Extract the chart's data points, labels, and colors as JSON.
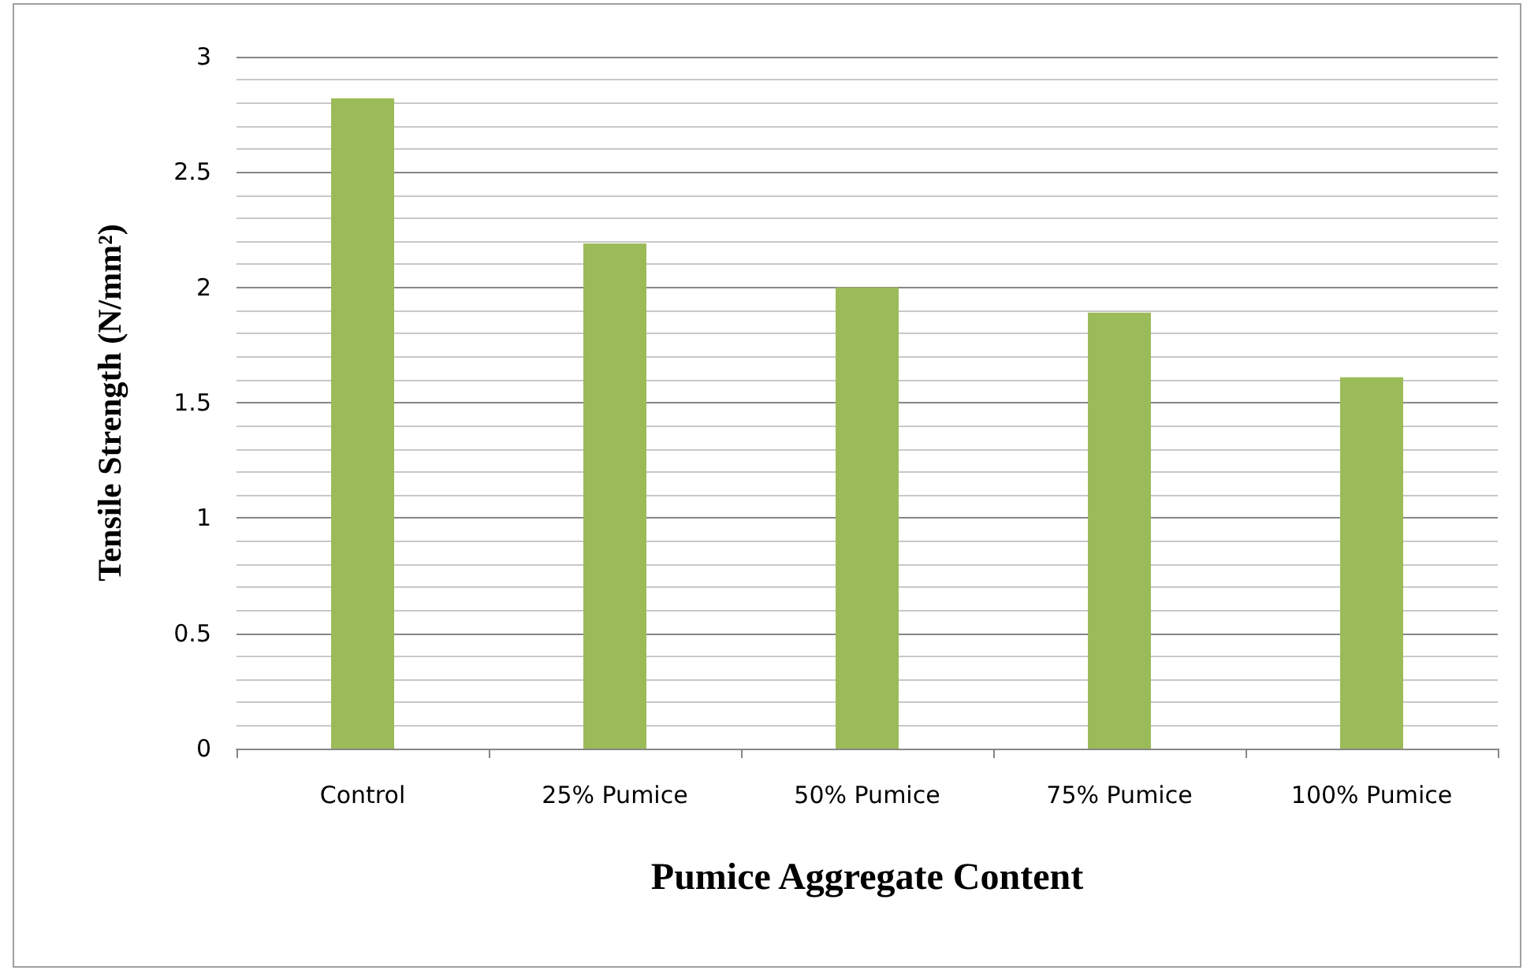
{
  "chart_data": {
    "type": "bar",
    "xlabel": "Pumice Aggregate Content",
    "ylabel": "Tensile Strength (N/mm²)",
    "categories": [
      "Control",
      "25% Pumice",
      "50% Pumice",
      "75% Pumice",
      "100% Pumice"
    ],
    "values": [
      2.82,
      2.19,
      2.0,
      1.89,
      1.61
    ],
    "color": "#9bbb59",
    "ylim": [
      0,
      3
    ],
    "yticks": [
      0,
      0.5,
      1,
      1.5,
      2,
      2.5,
      3
    ],
    "grid": "y"
  }
}
